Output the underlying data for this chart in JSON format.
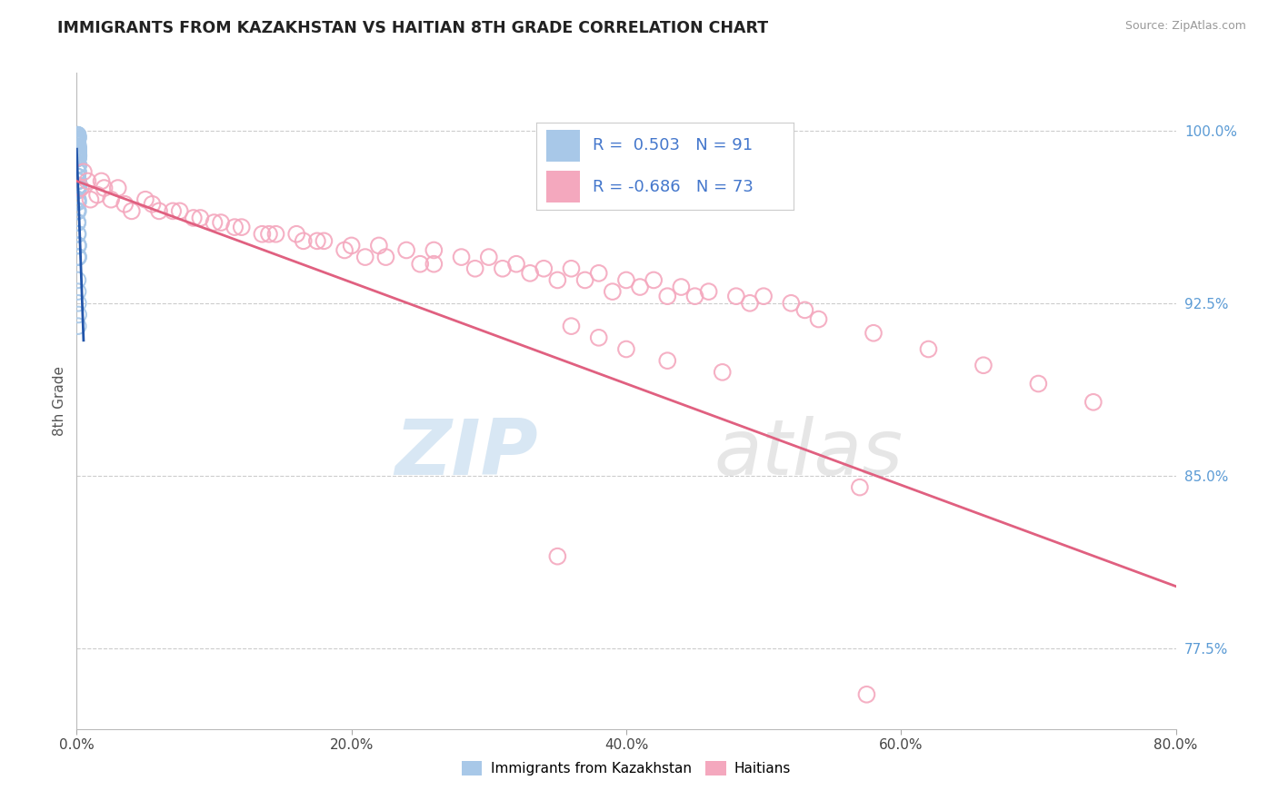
{
  "title": "IMMIGRANTS FROM KAZAKHSTAN VS HAITIAN 8TH GRADE CORRELATION CHART",
  "source": "Source: ZipAtlas.com",
  "xlabel_vals": [
    0.0,
    20.0,
    40.0,
    60.0,
    80.0
  ],
  "ylabel_vals": [
    77.5,
    85.0,
    92.5,
    100.0
  ],
  "xmin": 0.0,
  "xmax": 80.0,
  "ymin": 74.0,
  "ymax": 102.5,
  "r_kaz": 0.503,
  "n_kaz": 91,
  "r_hai": -0.686,
  "n_hai": 73,
  "color_kaz": "#A8C8E8",
  "color_hai": "#F4A8BE",
  "color_kaz_line": "#2255AA",
  "color_hai_line": "#E06080",
  "legend_label_kaz": "Immigrants from Kazakhstan",
  "legend_label_hai": "Haitians",
  "watermark_zip": "ZIP",
  "watermark_atlas": "atlas",
  "title_color": "#222222",
  "tick_color_right": "#5B9BD5",
  "grid_color": "#CCCCCC",
  "kaz_x": [
    0.02,
    0.05,
    0.08,
    0.12,
    0.06,
    0.07,
    0.09,
    0.11,
    0.05,
    0.13,
    0.04,
    0.06,
    0.08,
    0.1,
    0.07,
    0.09,
    0.05,
    0.11,
    0.1,
    0.08,
    0.1,
    0.12,
    0.07,
    0.09,
    0.05,
    0.06,
    0.08,
    0.1,
    0.12,
    0.07,
    0.09,
    0.05,
    0.06,
    0.08,
    0.04,
    0.07,
    0.09,
    0.11,
    0.05,
    0.06,
    0.08,
    0.1,
    0.07,
    0.09,
    0.05,
    0.06,
    0.08,
    0.1,
    0.12,
    0.07,
    0.09,
    0.05,
    0.06,
    0.08,
    0.1,
    0.07,
    0.09,
    0.05,
    0.06,
    0.08,
    0.1,
    0.12,
    0.07,
    0.09,
    0.05,
    0.06,
    0.08,
    0.1,
    0.07,
    0.09,
    0.05,
    0.06,
    0.08,
    0.1,
    0.12,
    0.07,
    0.09,
    0.05,
    0.06,
    0.03,
    0.1,
    0.07,
    0.09,
    0.05,
    0.06,
    0.08,
    0.1,
    0.12,
    0.07,
    0.09,
    0.14
  ],
  "kaz_y": [
    99.8,
    99.5,
    99.8,
    99.2,
    99.6,
    99.3,
    99.7,
    99.1,
    99.4,
    98.9,
    99.5,
    99.8,
    99.2,
    98.8,
    99.6,
    99.3,
    99.7,
    99.1,
    97.5,
    98.9,
    98.2,
    97.8,
    99.0,
    98.5,
    99.5,
    99.8,
    99.2,
    98.8,
    97.6,
    99.0,
    98.5,
    98.0,
    97.5,
    97.0,
    99.5,
    98.8,
    98.2,
    97.8,
    99.6,
    99.3,
    99.7,
    99.1,
    99.4,
    98.9,
    99.5,
    99.8,
    99.2,
    98.8,
    97.6,
    99.0,
    98.5,
    98.0,
    97.5,
    97.0,
    96.5,
    98.8,
    98.2,
    97.8,
    99.6,
    99.3,
    99.7,
    99.1,
    99.4,
    98.9,
    96.0,
    95.5,
    95.0,
    94.5,
    97.4,
    96.9,
    96.5,
    96.0,
    95.5,
    95.0,
    94.5,
    97.4,
    96.9,
    96.5,
    96.0,
    99.5,
    95.0,
    94.5,
    97.4,
    96.9,
    96.5,
    93.0,
    92.5,
    92.0,
    93.5,
    91.5,
    98.5
  ],
  "hai_x": [
    0.3,
    0.8,
    1.5,
    2.5,
    4.0,
    5.5,
    7.0,
    8.5,
    10.0,
    12.0,
    14.0,
    16.0,
    18.0,
    20.0,
    22.0,
    24.0,
    26.0,
    28.0,
    30.0,
    32.0,
    34.0,
    36.0,
    38.0,
    40.0,
    42.0,
    44.0,
    46.0,
    48.0,
    50.0,
    52.0,
    1.0,
    2.0,
    3.5,
    6.0,
    9.0,
    11.5,
    14.5,
    17.5,
    21.0,
    25.0,
    29.0,
    33.0,
    37.0,
    41.0,
    45.0,
    49.0,
    53.0,
    0.5,
    1.8,
    3.0,
    5.0,
    7.5,
    10.5,
    13.5,
    16.5,
    19.5,
    22.5,
    26.0,
    31.0,
    35.0,
    39.0,
    43.0,
    36.0,
    38.0,
    40.0,
    54.0,
    58.0,
    62.0,
    66.0,
    70.0,
    74.0,
    43.0,
    47.0
  ],
  "hai_y": [
    97.5,
    97.8,
    97.2,
    97.0,
    96.5,
    96.8,
    96.5,
    96.2,
    96.0,
    95.8,
    95.5,
    95.5,
    95.2,
    95.0,
    95.0,
    94.8,
    94.8,
    94.5,
    94.5,
    94.2,
    94.0,
    94.0,
    93.8,
    93.5,
    93.5,
    93.2,
    93.0,
    92.8,
    92.8,
    92.5,
    97.0,
    97.5,
    96.8,
    96.5,
    96.2,
    95.8,
    95.5,
    95.2,
    94.5,
    94.2,
    94.0,
    93.8,
    93.5,
    93.2,
    92.8,
    92.5,
    92.2,
    98.2,
    97.8,
    97.5,
    97.0,
    96.5,
    96.0,
    95.5,
    95.2,
    94.8,
    94.5,
    94.2,
    94.0,
    93.5,
    93.0,
    92.8,
    91.5,
    91.0,
    90.5,
    91.8,
    91.2,
    90.5,
    89.8,
    89.0,
    88.2,
    90.0,
    89.5
  ],
  "hai_outlier1_x": 35.0,
  "hai_outlier1_y": 81.5,
  "hai_outlier2_x": 57.0,
  "hai_outlier2_y": 84.5,
  "hai_outlier3_x": 57.5,
  "hai_outlier3_y": 75.5,
  "hai_line_x0": 0.0,
  "hai_line_y0": 97.8,
  "hai_line_x1": 80.0,
  "hai_line_y1": 80.2
}
